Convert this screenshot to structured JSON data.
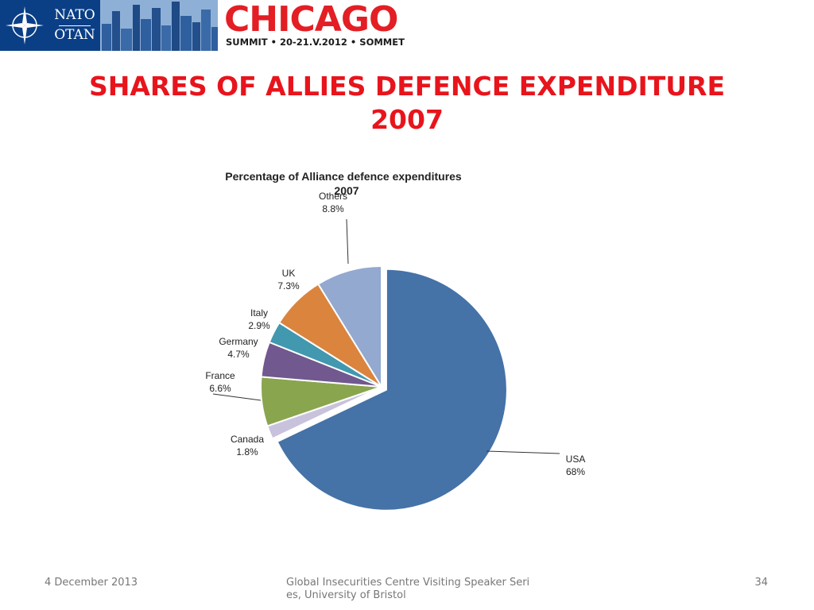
{
  "banner": {
    "logo_top": "NATO",
    "logo_bottom": "OTAN",
    "city": "CHICAGO",
    "summit": "SUMMIT • 20-21.V.2012 • SOMMET"
  },
  "slide": {
    "title_line1": "SHARES OF ALLIES DEFENCE EXPENDITURE",
    "title_line2": "2007"
  },
  "chart_data": {
    "type": "pie",
    "title_line1": "Percentage of Alliance defence expenditures",
    "title_line2": "2007",
    "slices": [
      {
        "label": "USA",
        "value": 68,
        "display": "68%",
        "color": "#4572a7"
      },
      {
        "label": "Canada",
        "value": 1.8,
        "display": "1.8%",
        "color": "#c9c2dd"
      },
      {
        "label": "France",
        "value": 6.6,
        "display": "6.6%",
        "color": "#89a54e"
      },
      {
        "label": "Germany",
        "value": 4.7,
        "display": "4.7%",
        "color": "#71588f"
      },
      {
        "label": "Italy",
        "value": 2.9,
        "display": "2.9%",
        "color": "#4198af"
      },
      {
        "label": "UK",
        "value": 7.3,
        "display": "7.3%",
        "color": "#db843d"
      },
      {
        "label": "Others",
        "value": 8.8,
        "display": "8.8%",
        "color": "#93a9cf"
      }
    ]
  },
  "footer": {
    "date": "4 December 2013",
    "center": "Global Insecurities Centre Visiting Speaker Series, University of Bristol",
    "page": "34"
  }
}
